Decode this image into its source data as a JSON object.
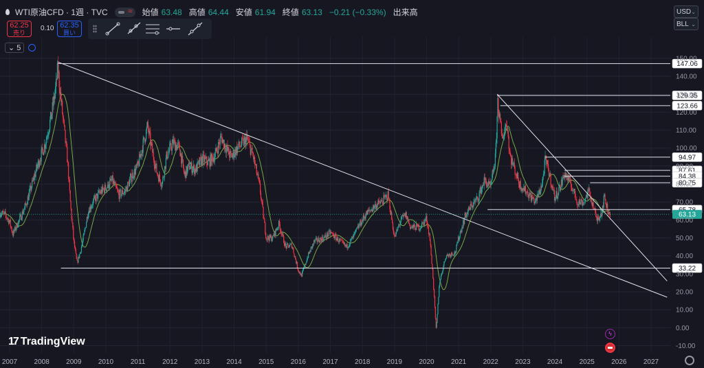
{
  "header": {
    "symbol": "WTI原油CFD · 1週 · TVC",
    "open_label": "始値",
    "open": "63.48",
    "high_label": "高値",
    "high": "64.44",
    "low_label": "安値",
    "low": "61.94",
    "close_label": "終値",
    "close": "63.13",
    "change": "−0.21 (−0.33%)",
    "volume_label": "出来高"
  },
  "trade": {
    "sell_price": "62.25",
    "sell_label": "売り",
    "spread": "0.10",
    "buy_price": "62.35",
    "buy_label": "買い"
  },
  "indicator": {
    "count": "5",
    "caret": "⌄"
  },
  "selectors": {
    "currency": "USD",
    "unit": "BLL",
    "caret": "⌄"
  },
  "brand": {
    "name": "TradingView",
    "logo": "17"
  },
  "icons": [
    "droplet-icon",
    "bolt-icon",
    "us-flag-icon",
    "gear-icon",
    "trendline-icon",
    "ray-icon",
    "parallel-channel-icon",
    "horizontal-line-icon",
    "extended-line-icon"
  ],
  "colors": {
    "up": "#26a69a",
    "down": "#f23645",
    "ma": "#8bc34a",
    "bg": "#171722",
    "last": "#26a69a"
  },
  "chart_data": {
    "type": "candlestick",
    "x_ticks": [
      "2007",
      "2008",
      "2009",
      "2010",
      "2011",
      "2012",
      "2013",
      "2014",
      "2015",
      "2016",
      "2017",
      "2018",
      "2019",
      "2020",
      "2021",
      "2022",
      "2023",
      "2024",
      "2025",
      "2026",
      "2027"
    ],
    "y_ticks": [
      -10,
      0,
      10,
      20,
      30,
      40,
      50,
      60,
      70,
      80,
      90,
      100,
      110,
      120,
      130,
      140,
      150
    ],
    "ylim": [
      -14,
      158
    ],
    "xlim": [
      2006.7,
      2027.6
    ],
    "series_points": [
      [
        2006.7,
        64
      ],
      [
        2006.85,
        63
      ],
      [
        2007.0,
        59
      ],
      [
        2007.1,
        52
      ],
      [
        2007.3,
        60
      ],
      [
        2007.5,
        68
      ],
      [
        2007.7,
        80
      ],
      [
        2007.9,
        92
      ],
      [
        2008.1,
        102
      ],
      [
        2008.3,
        118
      ],
      [
        2008.45,
        135
      ],
      [
        2008.5,
        145
      ],
      [
        2008.6,
        127
      ],
      [
        2008.7,
        110
      ],
      [
        2008.8,
        94
      ],
      [
        2008.9,
        68
      ],
      [
        2009.0,
        48
      ],
      [
        2009.1,
        36
      ],
      [
        2009.2,
        42
      ],
      [
        2009.3,
        50
      ],
      [
        2009.45,
        65
      ],
      [
        2009.6,
        70
      ],
      [
        2009.8,
        75
      ],
      [
        2010.0,
        78
      ],
      [
        2010.2,
        82
      ],
      [
        2010.4,
        74
      ],
      [
        2010.6,
        76
      ],
      [
        2010.8,
        84
      ],
      [
        2011.0,
        90
      ],
      [
        2011.2,
        105
      ],
      [
        2011.3,
        112
      ],
      [
        2011.45,
        98
      ],
      [
        2011.6,
        86
      ],
      [
        2011.75,
        80
      ],
      [
        2011.9,
        96
      ],
      [
        2012.1,
        103
      ],
      [
        2012.3,
        100
      ],
      [
        2012.45,
        85
      ],
      [
        2012.6,
        90
      ],
      [
        2012.8,
        88
      ],
      [
        2013.0,
        94
      ],
      [
        2013.2,
        92
      ],
      [
        2013.4,
        96
      ],
      [
        2013.6,
        106
      ],
      [
        2013.75,
        100
      ],
      [
        2013.9,
        95
      ],
      [
        2014.1,
        100
      ],
      [
        2014.4,
        105
      ],
      [
        2014.6,
        95
      ],
      [
        2014.8,
        78
      ],
      [
        2015.0,
        50
      ],
      [
        2015.2,
        50
      ],
      [
        2015.4,
        58
      ],
      [
        2015.6,
        45
      ],
      [
        2015.8,
        46
      ],
      [
        2016.0,
        32
      ],
      [
        2016.1,
        29
      ],
      [
        2016.3,
        40
      ],
      [
        2016.5,
        48
      ],
      [
        2016.8,
        50
      ],
      [
        2017.0,
        53
      ],
      [
        2017.3,
        48
      ],
      [
        2017.5,
        45
      ],
      [
        2017.7,
        50
      ],
      [
        2017.9,
        57
      ],
      [
        2018.1,
        63
      ],
      [
        2018.4,
        68
      ],
      [
        2018.6,
        70
      ],
      [
        2018.8,
        74
      ],
      [
        2019.0,
        50
      ],
      [
        2019.2,
        60
      ],
      [
        2019.35,
        63
      ],
      [
        2019.5,
        56
      ],
      [
        2019.8,
        56
      ],
      [
        2020.0,
        61
      ],
      [
        2020.1,
        50
      ],
      [
        2020.2,
        28
      ],
      [
        2020.3,
        -2
      ],
      [
        2020.4,
        25
      ],
      [
        2020.6,
        40
      ],
      [
        2020.9,
        42
      ],
      [
        2021.0,
        50
      ],
      [
        2021.2,
        62
      ],
      [
        2021.4,
        68
      ],
      [
        2021.6,
        72
      ],
      [
        2021.8,
        82
      ],
      [
        2022.0,
        78
      ],
      [
        2022.15,
        95
      ],
      [
        2022.22,
        126
      ],
      [
        2022.35,
        105
      ],
      [
        2022.5,
        115
      ],
      [
        2022.6,
        96
      ],
      [
        2022.75,
        88
      ],
      [
        2022.9,
        80
      ],
      [
        2023.0,
        78
      ],
      [
        2023.2,
        74
      ],
      [
        2023.4,
        70
      ],
      [
        2023.6,
        80
      ],
      [
        2023.7,
        93
      ],
      [
        2023.8,
        88
      ],
      [
        2024.0,
        72
      ],
      [
        2024.2,
        80
      ],
      [
        2024.3,
        86
      ],
      [
        2024.5,
        80
      ],
      [
        2024.7,
        70
      ],
      [
        2024.9,
        70
      ],
      [
        2025.05,
        76
      ],
      [
        2025.2,
        68
      ],
      [
        2025.3,
        60
      ],
      [
        2025.45,
        64
      ],
      [
        2025.55,
        73
      ],
      [
        2025.65,
        65
      ],
      [
        2025.72,
        63.13
      ]
    ],
    "lines": [
      {
        "type": "trendline",
        "from": [
          2008.5,
          148
        ],
        "to": [
          2027.5,
          17
        ]
      },
      {
        "type": "trendline",
        "from": [
          2022.2,
          130
        ],
        "to": [
          2027.5,
          26
        ]
      },
      {
        "type": "horizontal",
        "from_x": 2008.5,
        "y": 147.06,
        "label": "147.06"
      },
      {
        "type": "horizontal",
        "from_x": 2022.2,
        "y": 129.35,
        "label": "129.35"
      },
      {
        "type": "horizontal",
        "from_x": 2022.3,
        "y": 123.66,
        "label": "123.66"
      },
      {
        "type": "horizontal",
        "from_x": 2023.7,
        "y": 94.97,
        "label": "94.97"
      },
      {
        "type": "horizontal",
        "from_x": 2024.3,
        "y": 87.61,
        "label": "87.61"
      },
      {
        "type": "horizontal",
        "from_x": 2024.3,
        "y": 84.38,
        "label": "84.38"
      },
      {
        "type": "horizontal",
        "from_x": 2025.1,
        "y": 80.75,
        "label": "80.75"
      },
      {
        "type": "horizontal",
        "from_x": 2021.9,
        "y": 65.78,
        "label": "65.78"
      },
      {
        "type": "horizontal",
        "from_x": 2008.6,
        "y": 33.22,
        "label": "33.22"
      }
    ],
    "last_price": 63.13,
    "grid": true,
    "legend": "none"
  }
}
